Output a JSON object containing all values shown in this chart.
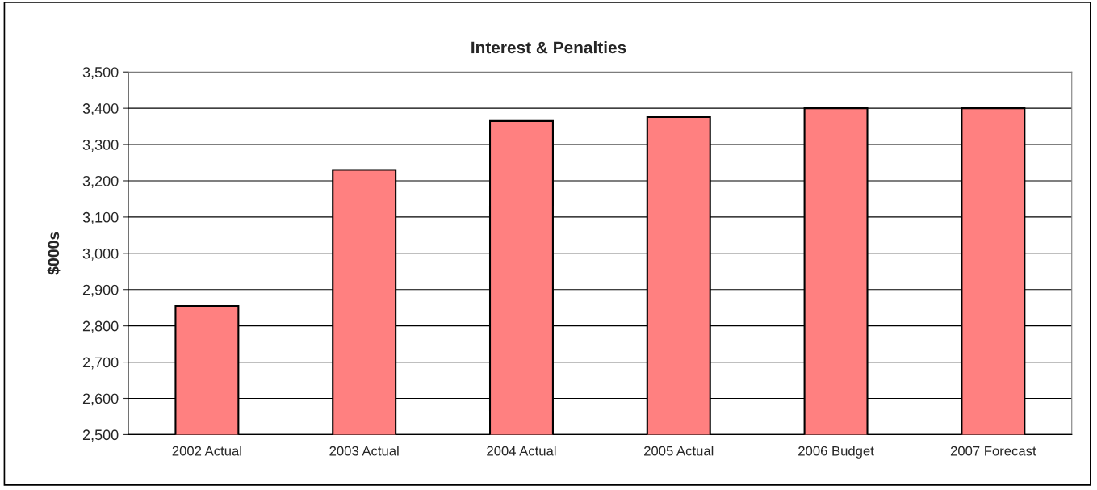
{
  "chart_data": {
    "type": "bar",
    "title": "Interest & Penalties",
    "ylabel": "$000s",
    "categories": [
      "2002 Actual",
      "2003 Actual",
      "2004 Actual",
      "2005 Actual",
      "2006 Budget",
      "2007 Forecast"
    ],
    "values": [
      2855,
      3230,
      3365,
      3376,
      3400,
      3400
    ],
    "color": "#ff8080",
    "ylim": [
      2500,
      3500
    ],
    "yticks": [
      {
        "value": 2500,
        "label": "2,500"
      },
      {
        "value": 2600,
        "label": "2,600"
      },
      {
        "value": 2700,
        "label": "2,700"
      },
      {
        "value": 2800,
        "label": "2,800"
      },
      {
        "value": 2900,
        "label": "2,900"
      },
      {
        "value": 3000,
        "label": "3,000"
      },
      {
        "value": 3100,
        "label": "3,100"
      },
      {
        "value": 3200,
        "label": "3,200"
      },
      {
        "value": 3300,
        "label": "3,300"
      },
      {
        "value": 3400,
        "label": "3,400"
      },
      {
        "value": 3500,
        "label": "3,500"
      }
    ],
    "grid": "y",
    "legend": false
  }
}
